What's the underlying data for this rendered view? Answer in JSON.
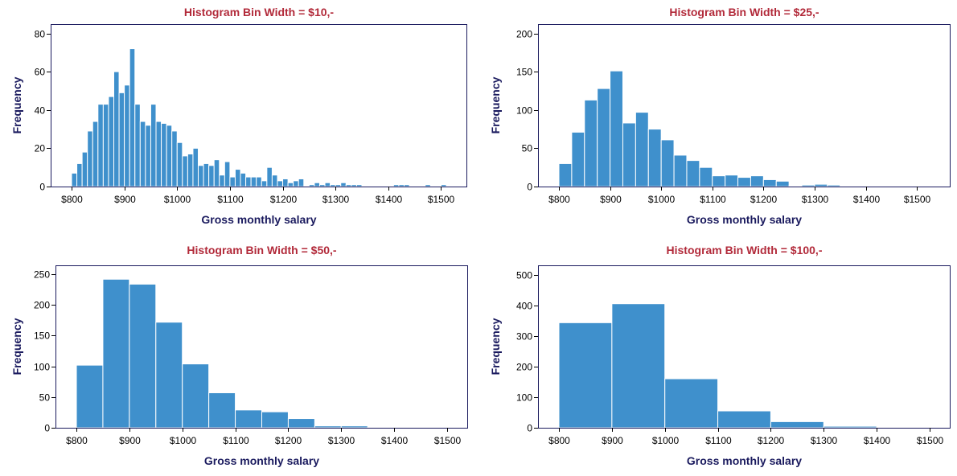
{
  "colors": {
    "title": "#b22a3a",
    "axis_label": "#1a1a5e",
    "frame": "#1a1a5e",
    "bar_fill": "#3f90cc",
    "bar_edge": "#ffffff"
  },
  "chart_data": [
    {
      "type": "bar",
      "title": "Histogram Bin Width = $10,-",
      "xlabel": "Gross monthly salary",
      "ylabel": "Frequency",
      "bin_width": 10,
      "x_range": [
        800,
        1510
      ],
      "ylim": [
        0,
        84
      ],
      "x_ticks": [
        800,
        900,
        1000,
        1100,
        1200,
        1300,
        1400,
        1500
      ],
      "x_tick_labels": [
        "$800",
        "$900",
        "$1000",
        "$1100",
        "$1200",
        "$1300",
        "$1400",
        "$1500"
      ],
      "y_ticks": [
        0,
        20,
        40,
        60,
        80
      ],
      "y_tick_labels": [
        "0",
        "20",
        "40",
        "60",
        "80"
      ],
      "grid": false,
      "bin_starts": [
        800,
        810,
        820,
        830,
        840,
        850,
        860,
        870,
        880,
        890,
        900,
        910,
        920,
        930,
        940,
        950,
        960,
        970,
        980,
        990,
        1000,
        1010,
        1020,
        1030,
        1040,
        1050,
        1060,
        1070,
        1080,
        1090,
        1100,
        1110,
        1120,
        1130,
        1140,
        1150,
        1160,
        1170,
        1180,
        1190,
        1200,
        1210,
        1220,
        1230,
        1240,
        1250,
        1260,
        1270,
        1280,
        1290,
        1300,
        1310,
        1320,
        1330,
        1340,
        1350,
        1360,
        1370,
        1380,
        1390,
        1400,
        1410,
        1420,
        1430,
        1440,
        1450,
        1460,
        1470,
        1480,
        1490,
        1500
      ],
      "values": [
        7,
        12,
        18,
        29,
        34,
        43,
        43,
        47,
        60,
        49,
        53,
        72,
        43,
        34,
        32,
        43,
        34,
        33,
        32,
        29,
        23,
        16,
        17,
        20,
        11,
        12,
        11,
        14,
        6,
        13,
        5,
        9,
        7,
        5,
        5,
        5,
        3,
        10,
        6,
        3,
        4,
        2,
        3,
        4,
        0,
        1,
        2,
        1,
        2,
        1,
        1,
        2,
        1,
        1,
        1,
        0,
        0,
        0,
        0,
        0,
        0,
        1,
        1,
        1,
        0,
        0,
        0,
        1,
        0,
        0,
        1
      ]
    },
    {
      "type": "bar",
      "title": "Histogram Bin Width = $25,-",
      "xlabel": "Gross monthly salary",
      "ylabel": "Frequency",
      "bin_width": 25,
      "x_range": [
        800,
        1525
      ],
      "ylim": [
        0,
        210
      ],
      "x_ticks": [
        800,
        900,
        1000,
        1100,
        1200,
        1300,
        1400,
        1500
      ],
      "x_tick_labels": [
        "$800",
        "$900",
        "$1000",
        "$1100",
        "$1200",
        "$1300",
        "$1400",
        "$1500"
      ],
      "y_ticks": [
        0,
        50,
        100,
        150,
        200
      ],
      "y_tick_labels": [
        "0",
        "50",
        "100",
        "150",
        "200"
      ],
      "grid": false,
      "bin_starts": [
        800,
        825,
        850,
        875,
        900,
        925,
        950,
        975,
        1000,
        1025,
        1050,
        1075,
        1100,
        1125,
        1150,
        1175,
        1200,
        1225,
        1250,
        1275,
        1300,
        1325,
        1350,
        1375,
        1400,
        1425,
        1450,
        1475,
        1500
      ],
      "values": [
        30,
        71,
        113,
        128,
        151,
        83,
        97,
        75,
        61,
        41,
        34,
        25,
        14,
        15,
        12,
        14,
        9,
        7,
        1,
        2,
        3,
        2,
        1,
        1,
        1,
        1,
        0,
        1,
        1
      ]
    },
    {
      "type": "bar",
      "title": "Histogram Bin Width = $50,-",
      "xlabel": "Gross monthly salary",
      "ylabel": "Frequency",
      "bin_width": 50,
      "x_range": [
        800,
        1500
      ],
      "ylim": [
        0,
        262
      ],
      "x_ticks": [
        800,
        900,
        1000,
        1100,
        1200,
        1300,
        1400,
        1500
      ],
      "x_tick_labels": [
        "$800",
        "$900",
        "$1000",
        "$1100",
        "$1200",
        "$1300",
        "$1400",
        "$1500"
      ],
      "y_ticks": [
        0,
        50,
        100,
        150,
        200,
        250
      ],
      "y_tick_labels": [
        "0",
        "50",
        "100",
        "150",
        "200",
        "250"
      ],
      "grid": false,
      "bin_starts": [
        800,
        850,
        900,
        950,
        1000,
        1050,
        1100,
        1150,
        1200,
        1250,
        1300,
        1350,
        1400,
        1450
      ],
      "values": [
        102,
        242,
        234,
        172,
        104,
        57,
        29,
        26,
        15,
        3,
        3,
        1,
        1,
        1
      ]
    },
    {
      "type": "bar",
      "title": "Histogram Bin Width = $100,-",
      "xlabel": "Gross monthly salary",
      "ylabel": "Frequency",
      "bin_width": 100,
      "x_range": [
        800,
        1500
      ],
      "ylim": [
        0,
        525
      ],
      "x_ticks": [
        800,
        900,
        1000,
        1100,
        1200,
        1300,
        1400,
        1500
      ],
      "x_tick_labels": [
        "$800",
        "$900",
        "$1000",
        "$1100",
        "$1200",
        "$1300",
        "$1400",
        "$1500"
      ],
      "y_ticks": [
        0,
        100,
        200,
        300,
        400,
        500
      ],
      "y_tick_labels": [
        "0",
        "100",
        "200",
        "300",
        "400",
        "500"
      ],
      "grid": false,
      "bin_starts": [
        800,
        900,
        1000,
        1100,
        1200,
        1300,
        1400
      ],
      "values": [
        343,
        405,
        160,
        55,
        20,
        5,
        1
      ]
    }
  ]
}
